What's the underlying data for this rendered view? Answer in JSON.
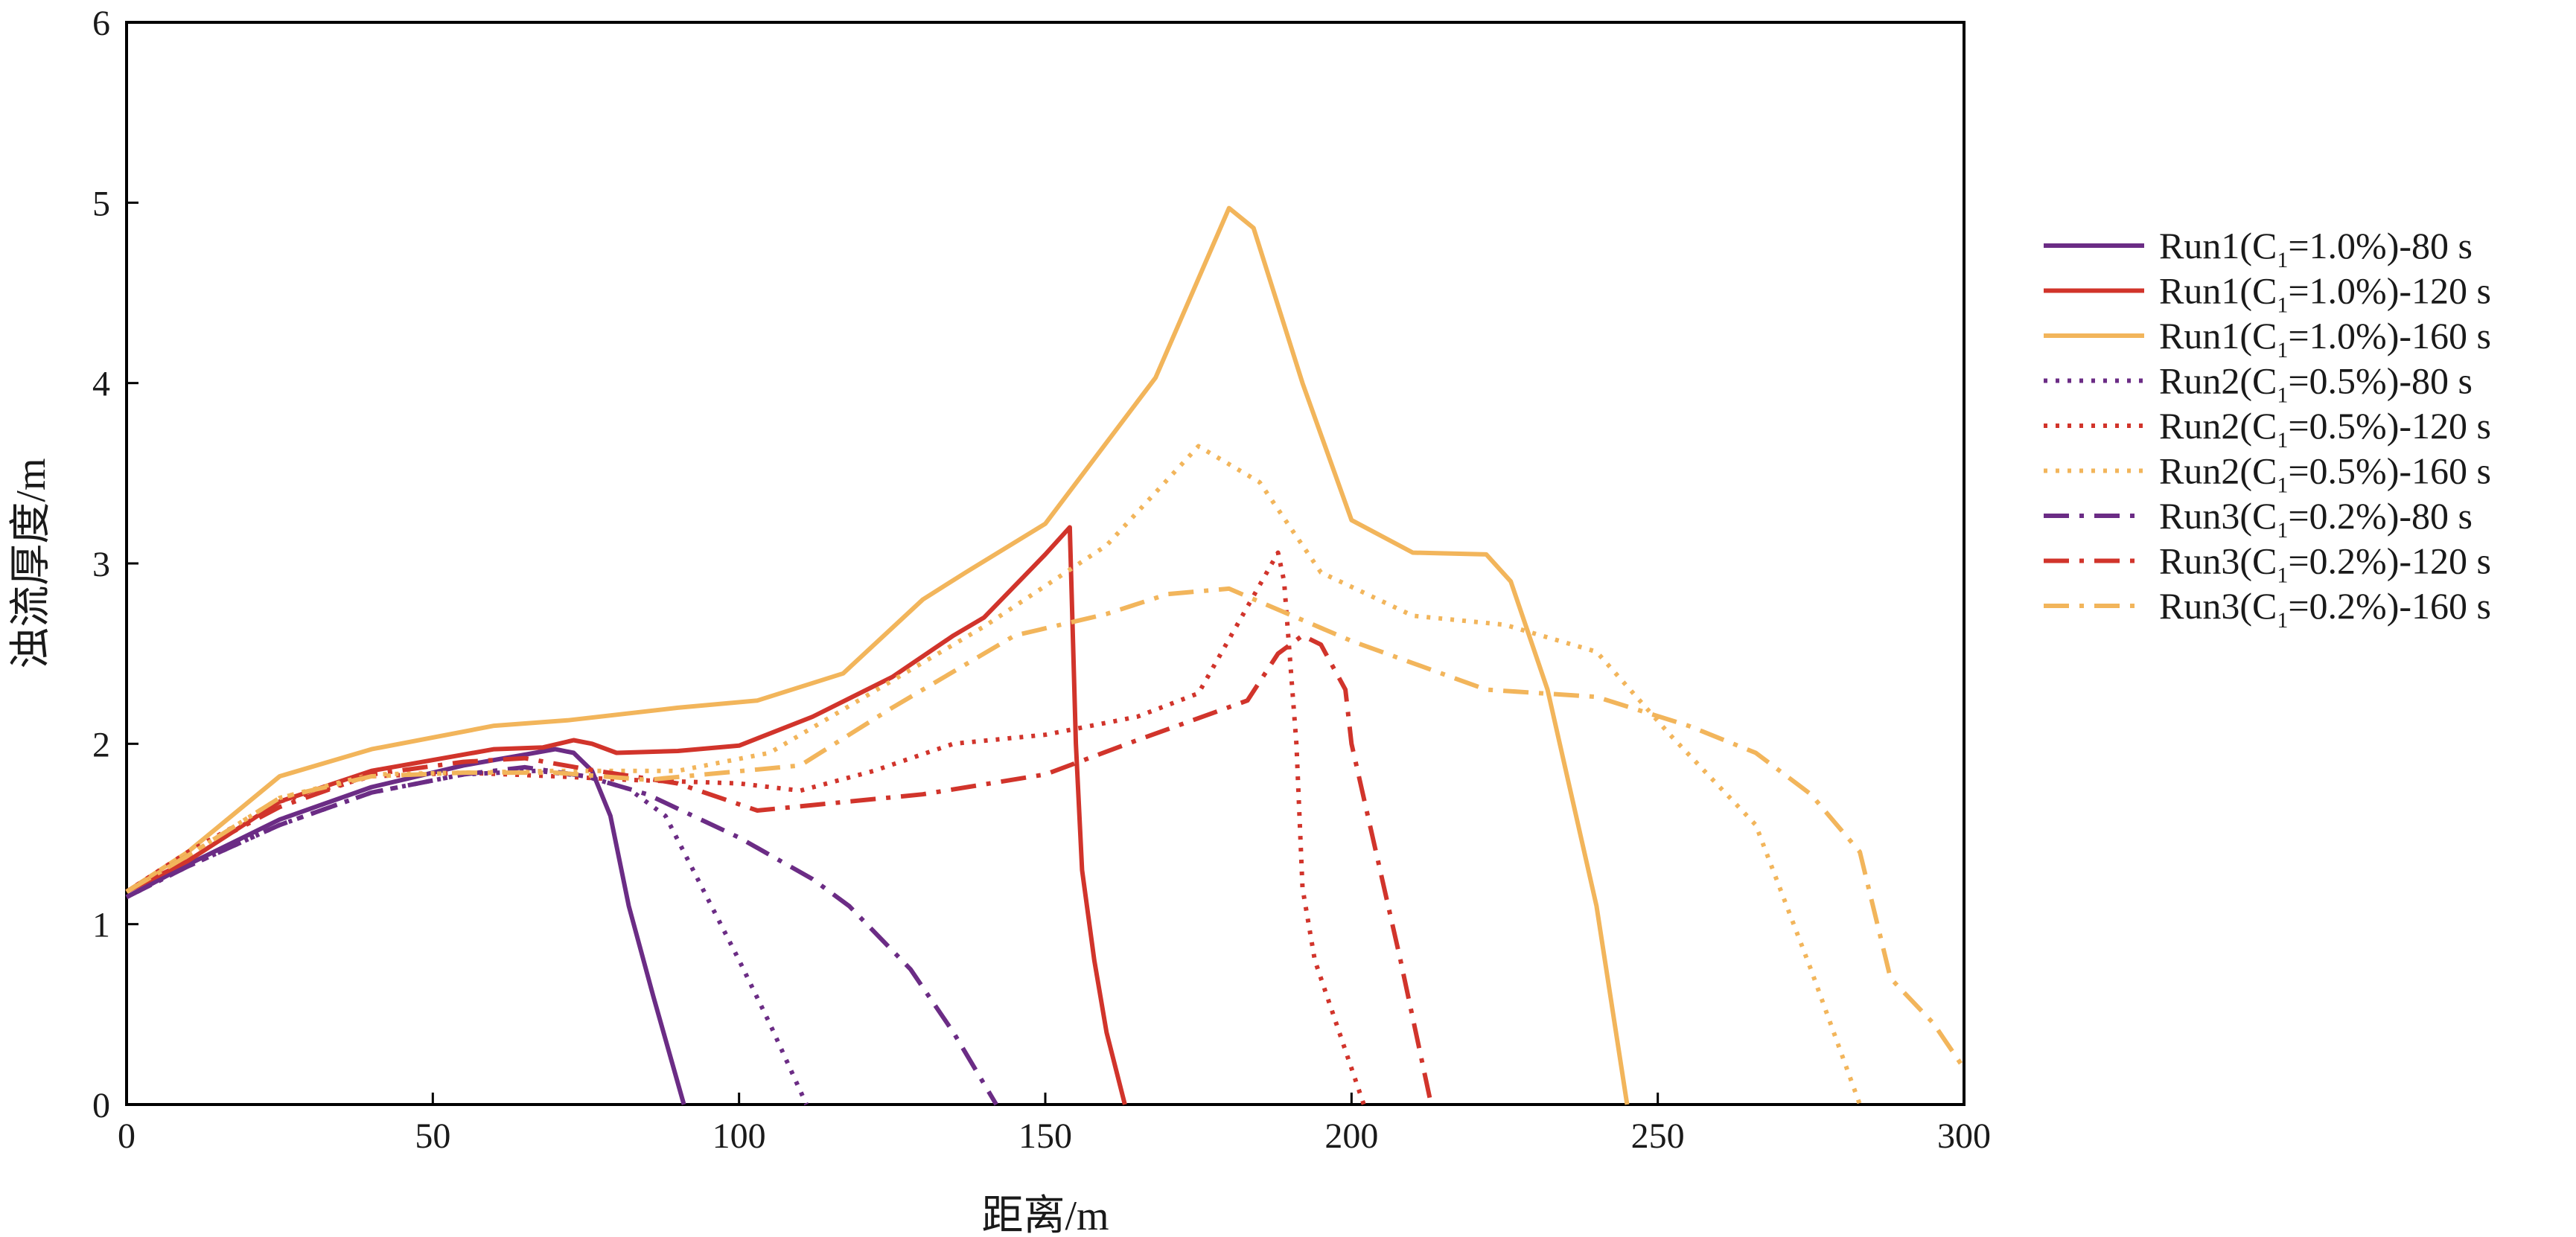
{
  "chart_data": {
    "type": "line",
    "xlabel": "距离/m",
    "ylabel": "浊流厚度/m",
    "xlim": [
      0,
      300
    ],
    "ylim": [
      0,
      6
    ],
    "xticks": [
      "0",
      "50",
      "100",
      "150",
      "200",
      "250",
      "300"
    ],
    "yticks": [
      "0",
      "1",
      "2",
      "3",
      "4",
      "5",
      "6"
    ],
    "grid": false,
    "legend_position": "right",
    "series": [
      {
        "name": "Run1(C1=1.0%)-80 s",
        "legend": {
          "pre": "Run1(C",
          "sub": "1",
          "post": "=1.0%)-80 s"
        },
        "color": "#6B2C85",
        "dash": "solid",
        "points": [
          [
            0,
            1.15
          ],
          [
            10,
            1.33
          ],
          [
            25,
            1.58
          ],
          [
            40,
            1.76
          ],
          [
            55,
            1.88
          ],
          [
            65,
            1.94
          ],
          [
            70,
            1.97
          ],
          [
            73,
            1.95
          ],
          [
            76,
            1.85
          ],
          [
            79,
            1.6
          ],
          [
            82,
            1.1
          ],
          [
            86,
            0.6
          ],
          [
            91,
            0
          ]
        ]
      },
      {
        "name": "Run1(C1=1.0%)-120 s",
        "legend": {
          "pre": "Run1(C",
          "sub": "1",
          "post": "=1.0%)-120 s"
        },
        "color": "#D1342B",
        "dash": "solid",
        "points": [
          [
            0,
            1.18
          ],
          [
            10,
            1.35
          ],
          [
            25,
            1.68
          ],
          [
            40,
            1.85
          ],
          [
            60,
            1.97
          ],
          [
            68,
            1.98
          ],
          [
            73,
            2.02
          ],
          [
            76,
            2.0
          ],
          [
            80,
            1.95
          ],
          [
            90,
            1.96
          ],
          [
            100,
            1.99
          ],
          [
            112,
            2.15
          ],
          [
            125,
            2.37
          ],
          [
            135,
            2.6
          ],
          [
            140,
            2.7
          ],
          [
            150,
            3.05
          ],
          [
            154,
            3.2
          ],
          [
            155,
            2.0
          ],
          [
            156,
            1.3
          ],
          [
            158,
            0.8
          ],
          [
            160,
            0.4
          ],
          [
            163,
            0
          ]
        ]
      },
      {
        "name": "Run1(C1=1.0%)-160 s",
        "legend": {
          "pre": "Run1(C",
          "sub": "1",
          "post": "=1.0%)-160 s"
        },
        "color": "#F2B55B",
        "dash": "solid",
        "points": [
          [
            0,
            1.18
          ],
          [
            10,
            1.4
          ],
          [
            25,
            1.82
          ],
          [
            40,
            1.97
          ],
          [
            60,
            2.1
          ],
          [
            72,
            2.13
          ],
          [
            90,
            2.2
          ],
          [
            103,
            2.24
          ],
          [
            117,
            2.39
          ],
          [
            130,
            2.8
          ],
          [
            137,
            2.95
          ],
          [
            150,
            3.22
          ],
          [
            168,
            4.03
          ],
          [
            180,
            4.97
          ],
          [
            184,
            4.86
          ],
          [
            192,
            4.0
          ],
          [
            200,
            3.24
          ],
          [
            210,
            3.06
          ],
          [
            222,
            3.05
          ],
          [
            226,
            2.9
          ],
          [
            232,
            2.3
          ],
          [
            240,
            1.1
          ],
          [
            245,
            0
          ]
        ]
      },
      {
        "name": "Run2(C1=0.5%)-80 s",
        "legend": {
          "pre": "Run2(C",
          "sub": "1",
          "post": "=0.5%)-80 s"
        },
        "color": "#6B2C85",
        "dash": "dot",
        "points": [
          [
            0,
            1.15
          ],
          [
            10,
            1.32
          ],
          [
            25,
            1.55
          ],
          [
            40,
            1.73
          ],
          [
            55,
            1.83
          ],
          [
            67,
            1.85
          ],
          [
            75,
            1.82
          ],
          [
            82,
            1.75
          ],
          [
            88,
            1.6
          ],
          [
            94,
            1.2
          ],
          [
            100,
            0.8
          ],
          [
            105,
            0.45
          ],
          [
            111,
            0
          ]
        ]
      },
      {
        "name": "Run2(C1=0.5%)-120 s",
        "legend": {
          "pre": "Run2(C",
          "sub": "1",
          "post": "=0.5%)-120 s"
        },
        "color": "#D1342B",
        "dash": "dot",
        "points": [
          [
            0,
            1.18
          ],
          [
            10,
            1.4
          ],
          [
            25,
            1.68
          ],
          [
            40,
            1.82
          ],
          [
            55,
            1.84
          ],
          [
            70,
            1.82
          ],
          [
            82,
            1.8
          ],
          [
            100,
            1.78
          ],
          [
            110,
            1.74
          ],
          [
            122,
            1.85
          ],
          [
            135,
            2.0
          ],
          [
            150,
            2.05
          ],
          [
            165,
            2.15
          ],
          [
            175,
            2.28
          ],
          [
            182,
            2.7
          ],
          [
            188,
            3.06
          ],
          [
            189,
            2.9
          ],
          [
            191,
            2.0
          ],
          [
            192,
            1.2
          ],
          [
            194,
            0.8
          ],
          [
            198,
            0.4
          ],
          [
            202,
            0
          ]
        ]
      },
      {
        "name": "Run2(C1=0.5%)-160 s",
        "legend": {
          "pre": "Run2(C",
          "sub": "1",
          "post": "=0.5%)-160 s"
        },
        "color": "#F2B55B",
        "dash": "dot",
        "points": [
          [
            0,
            1.18
          ],
          [
            10,
            1.38
          ],
          [
            25,
            1.7
          ],
          [
            40,
            1.83
          ],
          [
            55,
            1.84
          ],
          [
            70,
            1.85
          ],
          [
            90,
            1.85
          ],
          [
            105,
            1.95
          ],
          [
            120,
            2.25
          ],
          [
            140,
            2.65
          ],
          [
            160,
            3.1
          ],
          [
            175,
            3.65
          ],
          [
            185,
            3.45
          ],
          [
            195,
            2.95
          ],
          [
            210,
            2.71
          ],
          [
            225,
            2.66
          ],
          [
            240,
            2.51
          ],
          [
            252,
            2.05
          ],
          [
            266,
            1.55
          ],
          [
            275,
            0.75
          ],
          [
            283,
            0
          ]
        ]
      },
      {
        "name": "Run3(C1=0.2%)-80 s",
        "legend": {
          "pre": "Run3(C",
          "sub": "1",
          "post": "=0.2%)-80 s"
        },
        "color": "#6B2C85",
        "dash": "dashdot",
        "points": [
          [
            0,
            1.15
          ],
          [
            10,
            1.32
          ],
          [
            25,
            1.55
          ],
          [
            40,
            1.73
          ],
          [
            55,
            1.83
          ],
          [
            65,
            1.87
          ],
          [
            75,
            1.82
          ],
          [
            85,
            1.72
          ],
          [
            100,
            1.48
          ],
          [
            112,
            1.25
          ],
          [
            118,
            1.1
          ],
          [
            128,
            0.75
          ],
          [
            135,
            0.4
          ],
          [
            142,
            0
          ]
        ]
      },
      {
        "name": "Run3(C1=0.2%)-120 s",
        "legend": {
          "pre": "Run3(C",
          "sub": "1",
          "post": "=0.2%)-120 s"
        },
        "color": "#D1342B",
        "dash": "dashdot",
        "points": [
          [
            0,
            1.18
          ],
          [
            10,
            1.38
          ],
          [
            25,
            1.65
          ],
          [
            40,
            1.83
          ],
          [
            55,
            1.9
          ],
          [
            65,
            1.92
          ],
          [
            75,
            1.86
          ],
          [
            90,
            1.78
          ],
          [
            103,
            1.63
          ],
          [
            115,
            1.67
          ],
          [
            130,
            1.72
          ],
          [
            150,
            1.83
          ],
          [
            165,
            2.02
          ],
          [
            183,
            2.24
          ],
          [
            188,
            2.5
          ],
          [
            192,
            2.6
          ],
          [
            195,
            2.55
          ],
          [
            199,
            2.3
          ],
          [
            200,
            2.0
          ],
          [
            204,
            1.4
          ],
          [
            208,
            0.8
          ],
          [
            213,
            0
          ]
        ]
      },
      {
        "name": "Run3(C1=0.2%)-160 s",
        "legend": {
          "pre": "Run3(C",
          "sub": "1",
          "post": "=0.2%)-160 s"
        },
        "color": "#F2B55B",
        "dash": "dashdot",
        "points": [
          [
            0,
            1.18
          ],
          [
            10,
            1.38
          ],
          [
            25,
            1.7
          ],
          [
            40,
            1.82
          ],
          [
            55,
            1.84
          ],
          [
            70,
            1.84
          ],
          [
            85,
            1.8
          ],
          [
            110,
            1.88
          ],
          [
            125,
            2.2
          ],
          [
            145,
            2.6
          ],
          [
            160,
            2.72
          ],
          [
            170,
            2.83
          ],
          [
            180,
            2.86
          ],
          [
            200,
            2.57
          ],
          [
            222,
            2.3
          ],
          [
            240,
            2.26
          ],
          [
            255,
            2.1
          ],
          [
            266,
            1.95
          ],
          [
            275,
            1.72
          ],
          [
            283,
            1.4
          ],
          [
            288,
            0.7
          ],
          [
            295,
            0.45
          ],
          [
            300,
            0.2
          ]
        ]
      }
    ]
  }
}
